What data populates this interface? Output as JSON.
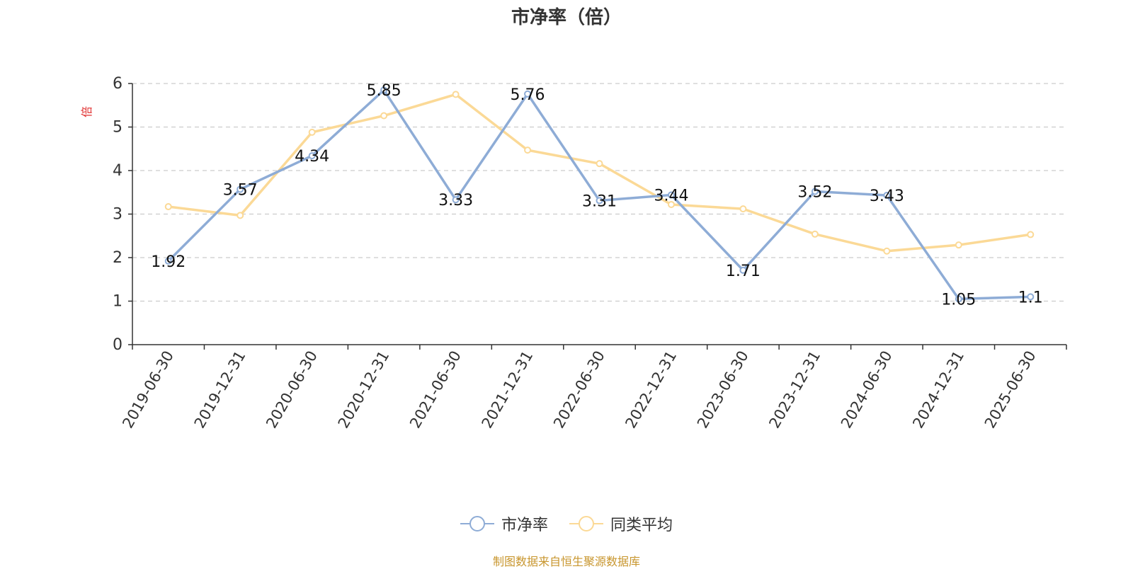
{
  "chart_data": {
    "type": "line",
    "title": "市净率（倍）",
    "ylabel": "倍",
    "xlabel": "",
    "ylim": [
      0,
      6
    ],
    "yticks": [
      0,
      1,
      2,
      3,
      4,
      5,
      6
    ],
    "grid": true,
    "legend_position": "bottom-center",
    "categories": [
      "2019-06-30",
      "2019-12-31",
      "2020-06-30",
      "2020-12-31",
      "2021-06-30",
      "2021-12-31",
      "2022-06-30",
      "2022-12-31",
      "2023-06-30",
      "2023-12-31",
      "2024-06-30",
      "2024-12-31",
      "2025-06-30"
    ],
    "series": [
      {
        "name": "市净率",
        "color": "#8eacd6",
        "values": [
          1.92,
          3.57,
          4.34,
          5.85,
          3.33,
          5.76,
          3.31,
          3.44,
          1.71,
          3.52,
          3.43,
          1.05,
          1.1
        ],
        "labels": [
          "1.92",
          "3.57",
          "4.34",
          "5.85",
          "3.33",
          "5.76",
          "3.31",
          "3.44",
          "1.71",
          "3.52",
          "3.43",
          "1.05",
          "1.1"
        ]
      },
      {
        "name": "同类平均",
        "color": "#fbd996",
        "values": [
          3.17,
          2.97,
          4.88,
          5.26,
          5.75,
          4.47,
          4.16,
          3.22,
          3.12,
          2.54,
          2.15,
          2.29,
          2.53
        ]
      }
    ]
  },
  "footnote": "制图数据来自恒生聚源数据库",
  "colors": {
    "axis": "#333333",
    "grid": "#cccccc",
    "ylabel": "#e03030",
    "footnote": "#c8962e"
  }
}
